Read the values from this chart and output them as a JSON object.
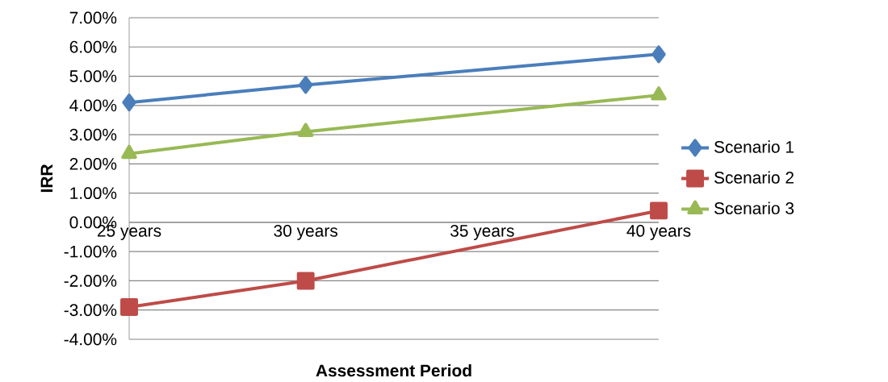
{
  "chart_data": {
    "type": "line",
    "xlabel": "Assessment Period",
    "ylabel": "IRR",
    "x": [
      25,
      30,
      40
    ],
    "xlim": [
      25,
      40
    ],
    "xticks": [
      {
        "value": 25,
        "label": "25 years"
      },
      {
        "value": 30,
        "label": "30 years"
      },
      {
        "value": 35,
        "label": "35 years"
      },
      {
        "value": 40,
        "label": "40 years"
      }
    ],
    "ylim": [
      -4,
      7
    ],
    "yticks": [
      {
        "value": -4,
        "label": "-4.00%"
      },
      {
        "value": -3,
        "label": "-3.00%"
      },
      {
        "value": -2,
        "label": "-2.00%"
      },
      {
        "value": -1,
        "label": "-1.00%"
      },
      {
        "value": 0,
        "label": "0.00%"
      },
      {
        "value": 1,
        "label": "1.00%"
      },
      {
        "value": 2,
        "label": "2.00%"
      },
      {
        "value": 3,
        "label": "3.00%"
      },
      {
        "value": 4,
        "label": "4.00%"
      },
      {
        "value": 5,
        "label": "5.00%"
      },
      {
        "value": 6,
        "label": "6.00%"
      },
      {
        "value": 7,
        "label": "7.00%"
      }
    ],
    "grid": "y",
    "legend": "right",
    "line_style": "solid",
    "series": [
      {
        "name": "Scenario 1",
        "color": "#4a7ebb",
        "marker": "diamond",
        "values": [
          4.1,
          4.7,
          5.75
        ]
      },
      {
        "name": "Scenario 2",
        "color": "#be4b48",
        "marker": "square",
        "values": [
          -2.9,
          -2.0,
          0.4
        ]
      },
      {
        "name": "Scenario 3",
        "color": "#98b954",
        "marker": "triangle",
        "values": [
          2.35,
          3.1,
          4.35
        ]
      }
    ]
  }
}
